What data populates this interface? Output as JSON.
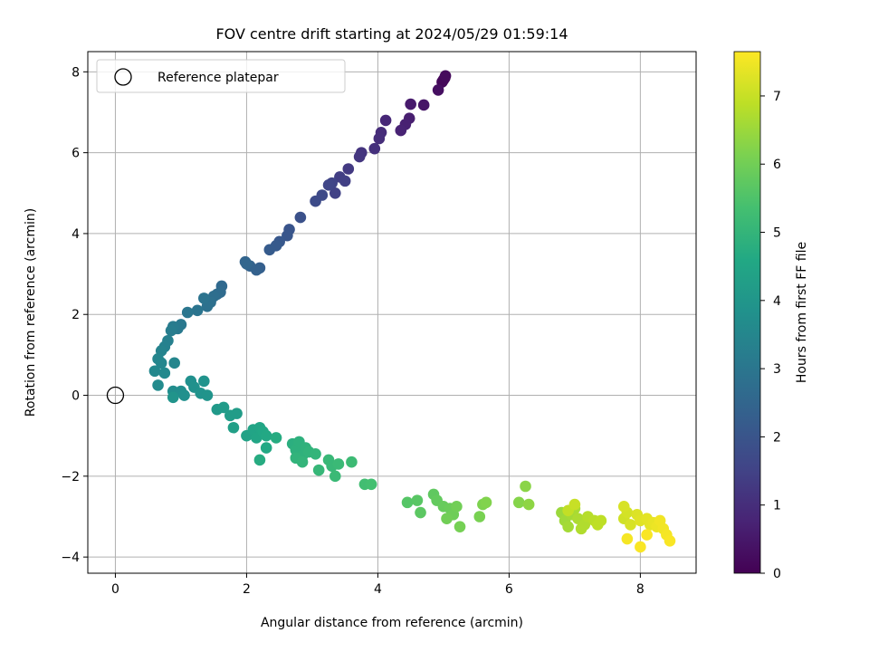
{
  "chart_data": {
    "type": "scatter",
    "title": "FOV centre drift starting at 2024/05/29 01:59:14",
    "xlabel": "Angular distance from reference (arcmin)",
    "ylabel": "Rotation from reference (arcmin)",
    "xlim": [
      -0.42,
      8.85
    ],
    "ylim": [
      -4.4,
      8.5
    ],
    "x_ticks": [
      0,
      2,
      4,
      6,
      8
    ],
    "y_ticks": [
      -4,
      -2,
      0,
      2,
      4,
      6,
      8
    ],
    "grid": true,
    "legend": {
      "placement": "top-left",
      "entries": [
        "Reference platepar"
      ]
    },
    "reference_point": {
      "x": 0,
      "y": 0,
      "label": "Reference platepar"
    },
    "colorbar": {
      "label": "Hours from first FF file",
      "colormap": "viridis",
      "range": [
        0,
        7.65
      ],
      "ticks": [
        0,
        1,
        2,
        3,
        4,
        5,
        6,
        7
      ]
    },
    "series": [
      {
        "points": [
          [
            5.0,
            7.8,
            0.05
          ],
          [
            5.02,
            7.85,
            0.1
          ],
          [
            4.98,
            7.75,
            0.15
          ],
          [
            5.03,
            7.9,
            0.2
          ],
          [
            4.92,
            7.55,
            0.3
          ],
          [
            4.7,
            7.18,
            0.45
          ],
          [
            4.5,
            7.2,
            0.55
          ],
          [
            4.48,
            6.85,
            0.65
          ],
          [
            4.42,
            6.7,
            0.7
          ],
          [
            4.35,
            6.55,
            0.75
          ],
          [
            4.12,
            6.8,
            0.85
          ],
          [
            4.05,
            6.5,
            0.95
          ],
          [
            4.02,
            6.35,
            1.0
          ],
          [
            3.95,
            6.1,
            1.05
          ],
          [
            3.75,
            6.0,
            1.15
          ],
          [
            3.72,
            5.9,
            1.2
          ],
          [
            3.55,
            5.6,
            1.3
          ],
          [
            3.42,
            5.4,
            1.4
          ],
          [
            3.5,
            5.3,
            1.45
          ],
          [
            3.35,
            5.0,
            1.5
          ],
          [
            3.3,
            5.25,
            1.55
          ],
          [
            3.25,
            5.2,
            1.6
          ],
          [
            3.15,
            4.95,
            1.7
          ],
          [
            3.05,
            4.8,
            1.75
          ],
          [
            2.82,
            4.4,
            1.9
          ],
          [
            2.65,
            4.1,
            2.0
          ],
          [
            2.62,
            3.95,
            2.05
          ],
          [
            2.5,
            3.8,
            2.1
          ],
          [
            2.45,
            3.7,
            2.15
          ],
          [
            2.35,
            3.6,
            2.2
          ],
          [
            2.2,
            3.15,
            2.3
          ],
          [
            2.15,
            3.1,
            2.35
          ],
          [
            2.05,
            3.2,
            2.4
          ],
          [
            1.98,
            3.3,
            2.45
          ],
          [
            2.0,
            3.25,
            2.5
          ],
          [
            1.62,
            2.7,
            2.6
          ],
          [
            1.6,
            2.55,
            2.65
          ],
          [
            1.55,
            2.5,
            2.7
          ],
          [
            1.5,
            2.45,
            2.75
          ],
          [
            1.45,
            2.3,
            2.8
          ],
          [
            1.4,
            2.2,
            2.85
          ],
          [
            1.35,
            2.4,
            2.9
          ],
          [
            1.25,
            2.1,
            2.95
          ],
          [
            1.1,
            2.05,
            3.0
          ],
          [
            1.0,
            1.75,
            3.05
          ],
          [
            0.95,
            1.65,
            3.1
          ],
          [
            0.88,
            1.7,
            3.15
          ],
          [
            0.85,
            1.6,
            3.2
          ],
          [
            0.8,
            1.35,
            3.3
          ],
          [
            0.75,
            1.2,
            3.35
          ],
          [
            0.7,
            1.1,
            3.4
          ],
          [
            0.65,
            0.9,
            3.45
          ],
          [
            0.7,
            0.8,
            3.5
          ],
          [
            0.9,
            0.8,
            3.5
          ],
          [
            0.6,
            0.6,
            3.55
          ],
          [
            0.75,
            0.55,
            3.6
          ],
          [
            0.65,
            0.25,
            3.65
          ],
          [
            0.88,
            0.1,
            3.7
          ],
          [
            1.0,
            0.1,
            3.75
          ],
          [
            1.05,
            0.0,
            3.8
          ],
          [
            1.15,
            0.35,
            3.8
          ],
          [
            1.2,
            0.2,
            3.85
          ],
          [
            1.3,
            0.05,
            3.9
          ],
          [
            1.35,
            0.35,
            3.9
          ],
          [
            1.4,
            0.0,
            3.95
          ],
          [
            0.88,
            -0.05,
            3.95
          ],
          [
            1.55,
            -0.35,
            4.1
          ],
          [
            1.65,
            -0.3,
            4.15
          ],
          [
            1.75,
            -0.5,
            4.2
          ],
          [
            1.85,
            -0.45,
            4.2
          ],
          [
            1.8,
            -0.8,
            4.3
          ],
          [
            2.0,
            -1.0,
            4.4
          ],
          [
            2.1,
            -0.85,
            4.45
          ],
          [
            2.15,
            -1.05,
            4.5
          ],
          [
            2.2,
            -0.8,
            4.5
          ],
          [
            2.25,
            -0.9,
            4.55
          ],
          [
            2.3,
            -1.0,
            4.6
          ],
          [
            2.3,
            -1.3,
            4.6
          ],
          [
            2.2,
            -1.6,
            4.7
          ],
          [
            2.45,
            -1.05,
            4.7
          ],
          [
            2.7,
            -1.2,
            4.8
          ],
          [
            2.75,
            -1.35,
            4.85
          ],
          [
            2.8,
            -1.15,
            4.85
          ],
          [
            2.85,
            -1.5,
            4.9
          ],
          [
            2.9,
            -1.3,
            4.9
          ],
          [
            2.95,
            -1.4,
            4.95
          ],
          [
            2.75,
            -1.55,
            4.95
          ],
          [
            2.85,
            -1.65,
            5.0
          ],
          [
            3.05,
            -1.45,
            5.0
          ],
          [
            3.1,
            -1.85,
            5.05
          ],
          [
            3.25,
            -1.6,
            5.1
          ],
          [
            3.3,
            -1.75,
            5.1
          ],
          [
            3.35,
            -2.0,
            5.15
          ],
          [
            3.4,
            -1.7,
            5.15
          ],
          [
            3.6,
            -1.65,
            5.2
          ],
          [
            3.8,
            -2.2,
            5.3
          ],
          [
            3.9,
            -2.2,
            5.35
          ],
          [
            4.45,
            -2.65,
            5.6
          ],
          [
            4.6,
            -2.6,
            5.65
          ],
          [
            4.65,
            -2.9,
            5.7
          ],
          [
            4.85,
            -2.45,
            5.75
          ],
          [
            4.9,
            -2.6,
            5.8
          ],
          [
            5.0,
            -2.75,
            5.85
          ],
          [
            5.1,
            -2.8,
            5.9
          ],
          [
            5.15,
            -2.95,
            5.95
          ],
          [
            5.05,
            -3.05,
            6.0
          ],
          [
            5.2,
            -2.75,
            6.0
          ],
          [
            5.25,
            -3.25,
            6.05
          ],
          [
            5.55,
            -3.0,
            6.1
          ],
          [
            5.6,
            -2.7,
            6.15
          ],
          [
            5.65,
            -2.65,
            6.2
          ],
          [
            6.15,
            -2.65,
            6.25
          ],
          [
            6.25,
            -2.25,
            6.3
          ],
          [
            6.3,
            -2.7,
            6.35
          ],
          [
            6.8,
            -2.9,
            6.5
          ],
          [
            6.85,
            -3.1,
            6.55
          ],
          [
            6.9,
            -3.25,
            6.6
          ],
          [
            6.95,
            -2.95,
            6.6
          ],
          [
            7.0,
            -2.8,
            6.65
          ],
          [
            7.05,
            -3.05,
            6.7
          ],
          [
            7.1,
            -3.3,
            6.75
          ],
          [
            7.15,
            -3.2,
            6.75
          ],
          [
            7.2,
            -3.0,
            6.8
          ],
          [
            7.3,
            -3.1,
            6.85
          ],
          [
            7.35,
            -3.2,
            6.9
          ],
          [
            7.4,
            -3.1,
            6.9
          ],
          [
            6.9,
            -2.85,
            6.95
          ],
          [
            7.0,
            -2.7,
            7.0
          ],
          [
            7.75,
            -3.05,
            7.1
          ],
          [
            7.8,
            -2.9,
            7.15
          ],
          [
            7.85,
            -3.2,
            7.2
          ],
          [
            7.95,
            -2.95,
            7.25
          ],
          [
            8.0,
            -3.1,
            7.3
          ],
          [
            8.1,
            -3.05,
            7.35
          ],
          [
            8.15,
            -3.2,
            7.35
          ],
          [
            8.2,
            -3.15,
            7.4
          ],
          [
            8.25,
            -3.25,
            7.45
          ],
          [
            8.3,
            -3.1,
            7.5
          ],
          [
            8.35,
            -3.3,
            7.5
          ],
          [
            8.4,
            -3.45,
            7.55
          ],
          [
            8.45,
            -3.6,
            7.6
          ],
          [
            7.8,
            -3.55,
            7.55
          ],
          [
            8.0,
            -3.75,
            7.6
          ],
          [
            8.1,
            -3.45,
            7.6
          ],
          [
            7.75,
            -2.75,
            7.2
          ]
        ]
      }
    ]
  }
}
